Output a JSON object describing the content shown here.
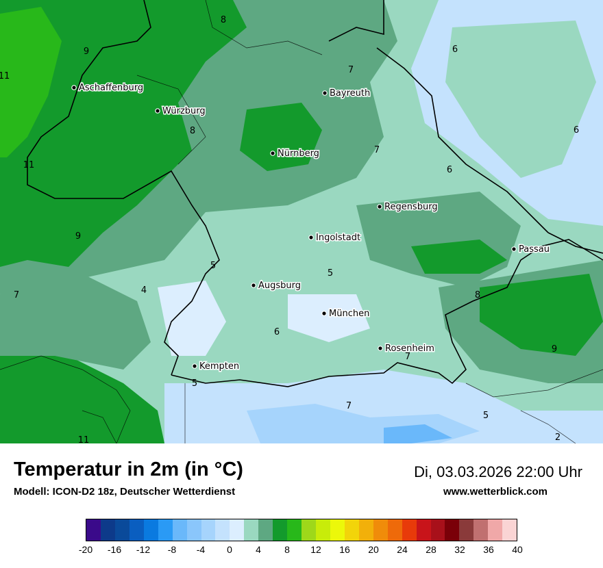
{
  "map": {
    "cities": [
      {
        "name": "Aschaffenburg"
      },
      {
        "name": "Würzburg"
      },
      {
        "name": "Bayreuth"
      },
      {
        "name": "Nürnberg"
      },
      {
        "name": "Regensburg"
      },
      {
        "name": "Ingolstadt"
      },
      {
        "name": "Passau"
      },
      {
        "name": "Augsburg"
      },
      {
        "name": "München"
      },
      {
        "name": "Rosenheim"
      },
      {
        "name": "Kempten"
      }
    ],
    "isoline_labels": [
      "8",
      "9",
      "11",
      "8",
      "7",
      "6",
      "6",
      "7",
      "6",
      "11",
      "9",
      "5",
      "4",
      "7",
      "5",
      "8",
      "6",
      "9",
      "7",
      "5",
      "7",
      "5",
      "2",
      "11"
    ]
  },
  "footer": {
    "title": "Temperatur in 2m (in °C)",
    "model": "Modell: ICON-D2 18z, Deutscher Wetterdienst",
    "datetime": "Di, 03.03.2026 22:00 Uhr",
    "site": "www.wetterblick.com"
  },
  "legend": {
    "tick_labels": [
      "-20",
      "-16",
      "-12",
      "-8",
      "-4",
      "0",
      "4",
      "8",
      "12",
      "16",
      "20",
      "24",
      "28",
      "32",
      "36",
      "40"
    ],
    "colors": [
      "#3a0a8a",
      "#0d3a8a",
      "#0a4a9a",
      "#0a5ec0",
      "#0a7ae0",
      "#2a9af5",
      "#6ab8fa",
      "#8ac6fb",
      "#a6d4fc",
      "#c4e2fd",
      "#dceefe",
      "#9ad8c0",
      "#5ea882",
      "#139a2c",
      "#28b81a",
      "#9ed81a",
      "#c8ec0a",
      "#ecf80a",
      "#f2d40a",
      "#f2b00a",
      "#f08c0a",
      "#ee6a0a",
      "#e83a0a",
      "#c8141a",
      "#a8101a",
      "#7a0008",
      "#8a3a3a",
      "#c07070",
      "#f0a8a8",
      "#fad4d4"
    ]
  }
}
